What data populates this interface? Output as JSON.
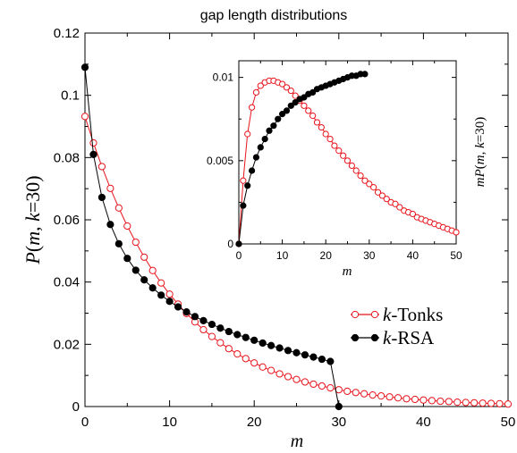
{
  "chart_data": [
    {
      "type": "line",
      "title": "gap length distributions",
      "xlabel": "m",
      "ylabel": "P(m, k=30)",
      "xlim": [
        0,
        50
      ],
      "ylim": [
        0,
        0.12
      ],
      "xticks": [
        "0",
        "10",
        "20",
        "30",
        "40",
        "50"
      ],
      "yticks": [
        "0",
        "0.02",
        "0.04",
        "0.06",
        "0.08",
        "0.1",
        "0.12"
      ],
      "legend_position": "right-center",
      "series": [
        {
          "name": "k-Tonks",
          "label_italic": "k",
          "label_rest": "-Tonks",
          "color": "#e8141c",
          "marker": "open-circle",
          "x": [
            0,
            1,
            2,
            3,
            4,
            5,
            6,
            7,
            8,
            9,
            10,
            11,
            12,
            13,
            14,
            15,
            16,
            17,
            18,
            19,
            20,
            21,
            22,
            23,
            24,
            25,
            26,
            27,
            28,
            29,
            30,
            31,
            32,
            33,
            34,
            35,
            36,
            37,
            38,
            39,
            40,
            41,
            42,
            43,
            44,
            45,
            46,
            47,
            48,
            49,
            50
          ],
          "y": [
            0.0932,
            0.0847,
            0.0771,
            0.0701,
            0.0638,
            0.058,
            0.0528,
            0.048,
            0.0437,
            0.0397,
            0.0361,
            0.0329,
            0.0299,
            0.0272,
            0.0247,
            0.0225,
            0.0205,
            0.0186,
            0.0169,
            0.0154,
            0.014,
            0.0127,
            0.0116,
            0.0105,
            0.0096,
            0.0087,
            0.0079,
            0.0072,
            0.0066,
            0.006,
            0.0054,
            0.0049,
            0.0045,
            0.0041,
            0.0037,
            0.0034,
            0.0031,
            0.0028,
            0.0025,
            0.0023,
            0.0021,
            0.0019,
            0.0017,
            0.0016,
            0.0014,
            0.0013,
            0.0012,
            0.0011,
            0.001,
            0.0009,
            0.0008
          ]
        },
        {
          "name": "k-RSA",
          "label_italic": "k",
          "label_rest": "-RSA",
          "color": "#000000",
          "marker": "filled-circle",
          "x": [
            0,
            1,
            2,
            3,
            4,
            5,
            6,
            7,
            8,
            9,
            10,
            11,
            12,
            13,
            14,
            15,
            16,
            17,
            18,
            19,
            20,
            21,
            22,
            23,
            24,
            25,
            26,
            27,
            28,
            29,
            30
          ],
          "y": [
            0.109,
            0.081,
            0.0672,
            0.0585,
            0.0523,
            0.0476,
            0.0438,
            0.0407,
            0.0381,
            0.0358,
            0.0338,
            0.032,
            0.0304,
            0.0289,
            0.0276,
            0.0264,
            0.0252,
            0.0241,
            0.0231,
            0.0222,
            0.0213,
            0.0204,
            0.0196,
            0.0188,
            0.018,
            0.0173,
            0.0166,
            0.0159,
            0.0152,
            0.0145,
            0.0
          ]
        }
      ]
    },
    {
      "type": "line",
      "title": "",
      "xlabel": "m",
      "ylabel": "mP(m, k=30)",
      "xlim": [
        0,
        50
      ],
      "ylim": [
        0,
        0.011
      ],
      "xticks": [
        "0",
        "10",
        "20",
        "30",
        "40",
        "50"
      ],
      "yticks": [
        "0",
        "0.005",
        "0.01"
      ],
      "series": [
        {
          "name": "k-Tonks",
          "color": "#e8141c",
          "marker": "open-circle",
          "x": [
            0,
            1,
            2,
            3,
            4,
            5,
            6,
            7,
            8,
            9,
            10,
            11,
            12,
            13,
            14,
            15,
            16,
            17,
            18,
            19,
            20,
            21,
            22,
            23,
            24,
            25,
            26,
            27,
            28,
            29,
            30,
            31,
            32,
            33,
            34,
            35,
            36,
            37,
            38,
            39,
            40,
            41,
            42,
            43,
            44,
            45,
            46,
            47,
            48,
            49,
            50
          ],
          "y": [
            0.0,
            0.0038,
            0.0066,
            0.0082,
            0.0091,
            0.0095,
            0.0097,
            0.0098,
            0.0098,
            0.0097,
            0.0096,
            0.0094,
            0.0092,
            0.0089,
            0.0086,
            0.0083,
            0.008,
            0.0077,
            0.0073,
            0.007,
            0.0066,
            0.0063,
            0.0059,
            0.0056,
            0.0053,
            0.005,
            0.0047,
            0.0044,
            0.0041,
            0.0038,
            0.0036,
            0.0034,
            0.0031,
            0.0029,
            0.0027,
            0.0025,
            0.0024,
            0.0022,
            0.002,
            0.0019,
            0.0018,
            0.0016,
            0.0015,
            0.0014,
            0.0013,
            0.0012,
            0.0011,
            0.001,
            0.0009,
            0.0008,
            0.0007
          ]
        },
        {
          "name": "k-RSA",
          "color": "#000000",
          "marker": "filled-circle",
          "x": [
            0,
            1,
            2,
            3,
            4,
            5,
            6,
            7,
            8,
            9,
            10,
            11,
            12,
            13,
            14,
            15,
            16,
            17,
            18,
            19,
            20,
            21,
            22,
            23,
            24,
            25,
            26,
            27,
            28,
            29
          ],
          "y": [
            0.0,
            0.0023,
            0.0035,
            0.0044,
            0.0052,
            0.0058,
            0.0063,
            0.0068,
            0.0071,
            0.0075,
            0.0078,
            0.008,
            0.0083,
            0.0085,
            0.0087,
            0.0088,
            0.009,
            0.0091,
            0.0093,
            0.0094,
            0.0095,
            0.0096,
            0.0097,
            0.0098,
            0.0099,
            0.01,
            0.0101,
            0.0101,
            0.0102,
            0.0102
          ]
        }
      ]
    }
  ]
}
